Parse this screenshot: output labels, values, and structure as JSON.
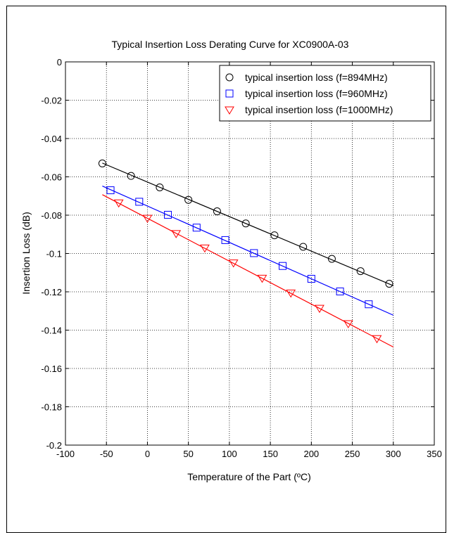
{
  "chart_data": {
    "type": "line",
    "title": "Typical Insertion Loss Derating Curve for XC0900A-03",
    "xlabel": "Temperature of the Part (ºC)",
    "ylabel": "Insertion Loss (dB)",
    "xlim": [
      -100,
      350
    ],
    "ylim": [
      -0.2,
      0
    ],
    "xticks": [
      -100,
      -50,
      0,
      50,
      100,
      150,
      200,
      250,
      300,
      350
    ],
    "yticks": [
      0,
      -0.02,
      -0.04,
      -0.06,
      -0.08,
      -0.1,
      -0.12,
      -0.14,
      -0.16,
      -0.18,
      -0.2
    ],
    "xtick_labels": [
      "-100",
      "-50",
      "0",
      "50",
      "100",
      "150",
      "200",
      "250",
      "300",
      "350"
    ],
    "ytick_labels": [
      "0",
      "-0.02",
      "-0.04",
      "-0.06",
      "-0.08",
      "-0.1",
      "-0.12",
      "-0.14",
      "-0.16",
      "-0.18",
      "-0.2"
    ],
    "grid": true,
    "legend_position": "top-right",
    "series": [
      {
        "name": "typical insertion loss (f=894MHz)",
        "color": "#000000",
        "marker": "circle",
        "x": [
          -55,
          -20,
          15,
          50,
          85,
          120,
          155,
          190,
          225,
          260,
          295
        ],
        "y": [
          -0.053,
          -0.0595,
          -0.0655,
          -0.072,
          -0.078,
          -0.0843,
          -0.0905,
          -0.0965,
          -0.1028,
          -0.1092,
          -0.1158
        ],
        "fit": {
          "x": [
            -55,
            300
          ],
          "y": [
            -0.0528,
            -0.1168
          ]
        }
      },
      {
        "name": "typical insertion loss (f=960MHz)",
        "color": "#0000ff",
        "marker": "square",
        "x": [
          -45,
          -10,
          25,
          60,
          95,
          130,
          165,
          200,
          235,
          270
        ],
        "y": [
          -0.067,
          -0.073,
          -0.0798,
          -0.0865,
          -0.093,
          -0.0998,
          -0.1065,
          -0.1132,
          -0.1198,
          -0.1265
        ],
        "fit": {
          "x": [
            -55,
            300
          ],
          "y": [
            -0.0648,
            -0.1322
          ]
        }
      },
      {
        "name": "typical insertion loss (f=1000MHz)",
        "color": "#ff0000",
        "marker": "triangle-down",
        "x": [
          -35,
          0,
          35,
          70,
          105,
          140,
          175,
          210,
          245,
          280
        ],
        "y": [
          -0.0735,
          -0.0815,
          -0.0895,
          -0.097,
          -0.1048,
          -0.1128,
          -0.1205,
          -0.1285,
          -0.1365,
          -0.1443
        ],
        "fit": {
          "x": [
            -55,
            300
          ],
          "y": [
            -0.0693,
            -0.1488
          ]
        }
      }
    ]
  }
}
